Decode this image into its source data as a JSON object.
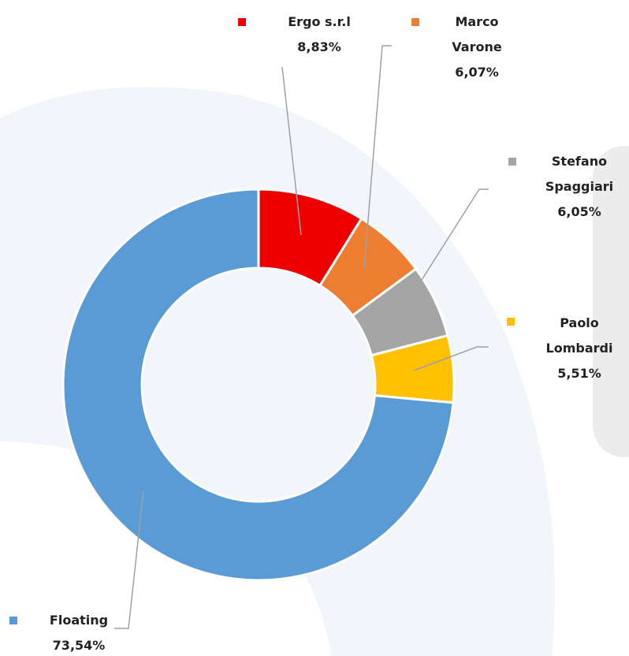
{
  "chart_data": {
    "type": "donut",
    "categories": [
      "Ergo s.r.l",
      "Marco Varone",
      "Stefano Spaggiari",
      "Paolo Lombardi",
      "Floating"
    ],
    "values": [
      8.83,
      6.07,
      6.05,
      5.51,
      73.54
    ],
    "value_labels": [
      "8,83%",
      "6,07%",
      "6,05%",
      "5,51%",
      "73,54%"
    ],
    "colors": [
      "#ee0000",
      "#ed7d31",
      "#a5a5a5",
      "#ffc000",
      "#5b9bd5"
    ]
  }
}
